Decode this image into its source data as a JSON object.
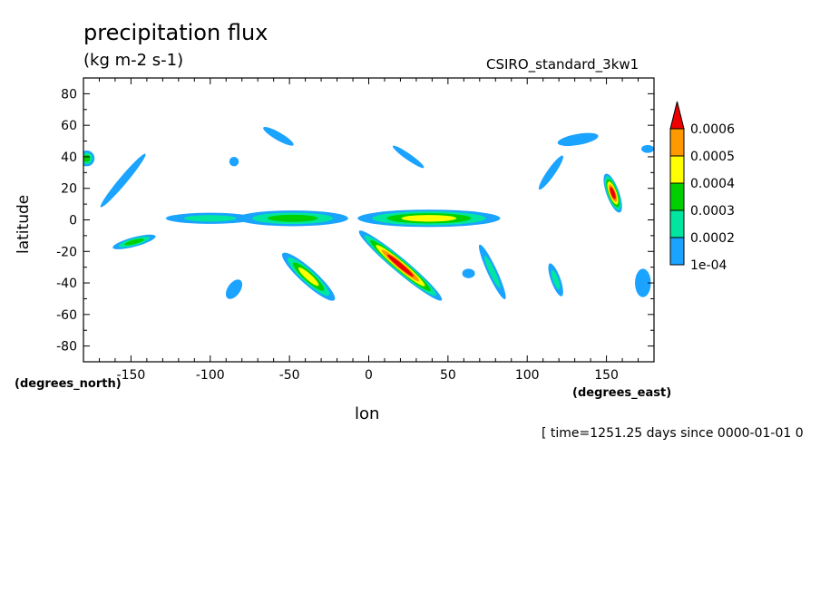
{
  "chart_data": {
    "type": "contour",
    "title": "precipitation flux",
    "units": "(kg m-2 s-1)",
    "run_label": "CSIRO_standard_3kw1",
    "xlabel": "lon",
    "ylabel": "latitude",
    "x_units_label": "(degrees_east)",
    "y_units_label": "(degrees_north)",
    "timestamp": "[ time=1251.25 days since 0000-01-01 0",
    "xlim": [
      -180,
      180
    ],
    "ylim": [
      -90,
      90
    ],
    "x_ticks": [
      -150,
      -100,
      -50,
      0,
      50,
      100,
      150
    ],
    "y_ticks": [
      80,
      60,
      40,
      20,
      0,
      -20,
      -40,
      -60,
      -80
    ],
    "levels": [
      "1e-04",
      "0.0002",
      "0.0003",
      "0.0004",
      "0.0005",
      "0.0006"
    ],
    "level_colors": [
      "#1aa3ff",
      "#00e6a0",
      "#00d000",
      "#ffff00",
      "#ff9900",
      "#ee0000"
    ],
    "features": [
      {
        "lon": -178,
        "lat": 39,
        "rx": 5,
        "ry": 5,
        "angle": 0,
        "max_level": 3
      },
      {
        "lon": -148,
        "lat": -14,
        "rx": 14,
        "ry": 3,
        "angle": -15,
        "max_level": 3
      },
      {
        "lon": -155,
        "lat": 25,
        "rx": 22,
        "ry": 2.5,
        "angle": -50,
        "max_level": 1
      },
      {
        "lon": -57,
        "lat": 53,
        "rx": 11,
        "ry": 2.5,
        "angle": 30,
        "max_level": 1
      },
      {
        "lon": -85,
        "lat": -44,
        "rx": 7,
        "ry": 4,
        "angle": -55,
        "max_level": 1
      },
      {
        "lon": -38,
        "lat": -36,
        "rx": 22,
        "ry": 5,
        "angle": 42,
        "max_level": 4
      },
      {
        "lon": 20,
        "lat": -29,
        "rx": 34,
        "ry": 4.5,
        "angle": 40,
        "max_level": 6
      },
      {
        "lon": -100,
        "lat": 1,
        "rx": 28,
        "ry": 3.5,
        "angle": 0,
        "max_level": 2
      },
      {
        "lon": -48,
        "lat": 1,
        "rx": 35,
        "ry": 5,
        "angle": 0,
        "max_level": 3
      },
      {
        "lon": 38,
        "lat": 1,
        "rx": 45,
        "ry": 5.5,
        "angle": 0,
        "max_level": 4
      },
      {
        "lon": 25,
        "lat": 40,
        "rx": 12,
        "ry": 2,
        "angle": 35,
        "max_level": 1
      },
      {
        "lon": 78,
        "lat": -33,
        "rx": 19,
        "ry": 3,
        "angle": 65,
        "max_level": 2
      },
      {
        "lon": 63,
        "lat": -34,
        "rx": 4,
        "ry": 3,
        "angle": 0,
        "max_level": 1
      },
      {
        "lon": 118,
        "lat": -38,
        "rx": 11,
        "ry": 3,
        "angle": 70,
        "max_level": 2
      },
      {
        "lon": 115,
        "lat": 30,
        "rx": 13,
        "ry": 2.5,
        "angle": -55,
        "max_level": 1
      },
      {
        "lon": 132,
        "lat": 51,
        "rx": 13,
        "ry": 3.5,
        "angle": -10,
        "max_level": 1
      },
      {
        "lon": 154,
        "lat": 17,
        "rx": 13,
        "ry": 4,
        "angle": 70,
        "max_level": 6
      },
      {
        "lon": 173,
        "lat": -40,
        "rx": 5,
        "ry": 9,
        "angle": 0,
        "max_level": 1
      },
      {
        "lon": -85,
        "lat": 37,
        "rx": 3,
        "ry": 3,
        "angle": 0,
        "max_level": 1
      },
      {
        "lon": 176,
        "lat": 45,
        "rx": 4,
        "ry": 2.5,
        "angle": 0,
        "max_level": 1
      }
    ]
  }
}
